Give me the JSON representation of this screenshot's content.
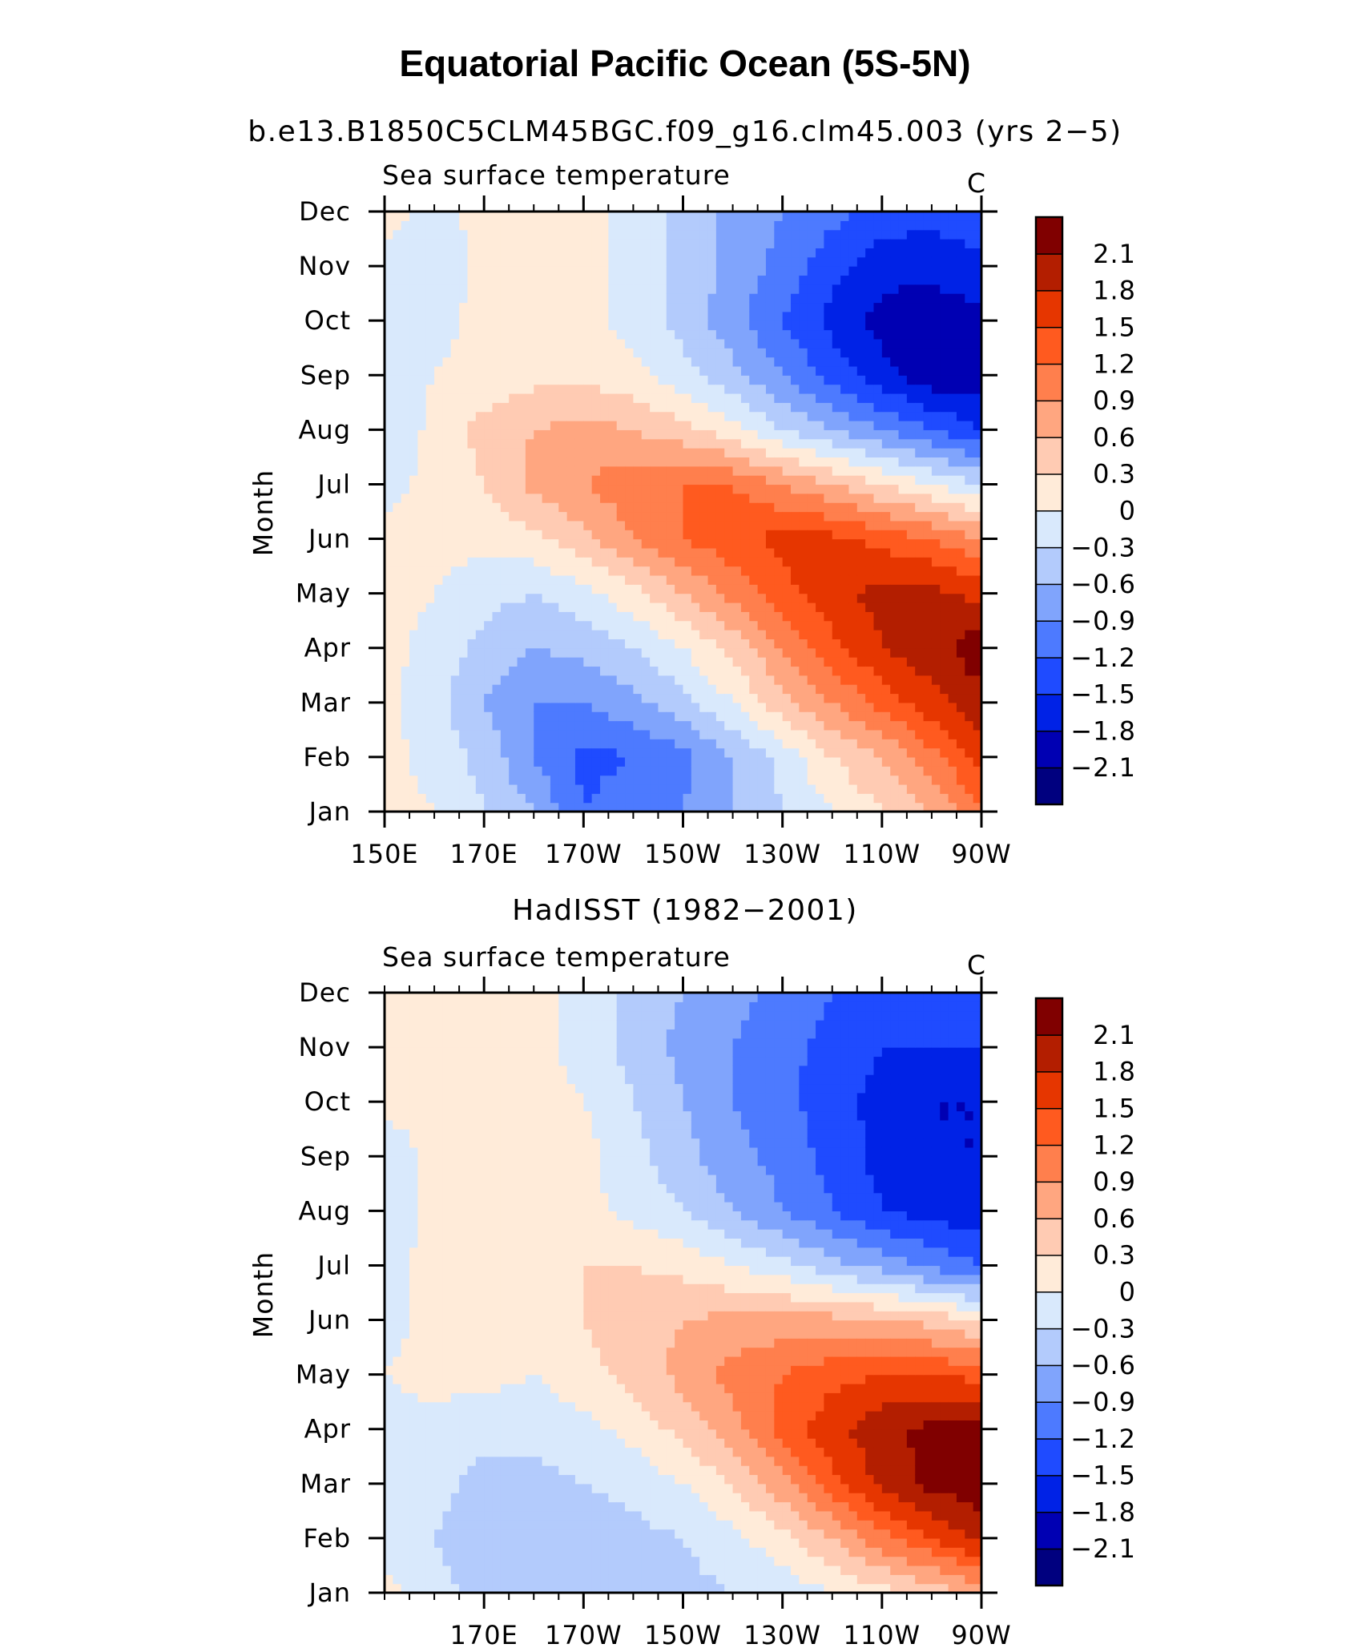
{
  "figure_title": "Equatorial Pacific Ocean (5S-5N)",
  "colors": [
    "#00007f",
    "#0000b3",
    "#0022e6",
    "#1f4bff",
    "#4d7aff",
    "#80a4fc",
    "#b3cbfc",
    "#d9e9fc",
    "#ffebd9",
    "#ffcbb3",
    "#ffa680",
    "#ff7f4d",
    "#ff5a1f",
    "#e63600",
    "#b31e00",
    "#800000"
  ],
  "colorbar_labels": [
    "2.1",
    "1.8",
    "1.5",
    "1.2",
    "0.9",
    "0.6",
    "0.3",
    "0",
    "−0.3",
    "−0.6",
    "−0.9",
    "−1.2",
    "−1.5",
    "−1.8",
    "−2.1"
  ],
  "chart_data": [
    {
      "type": "heatmap",
      "title": "b.e13.B1850C5CLM45BGC.f09_g16.clm45.003 (yrs 2−5)",
      "left_label": "Sea surface temperature",
      "units": "C",
      "xlabel": "",
      "ylabel": "Month",
      "x": [
        150,
        160,
        170,
        180,
        190,
        200,
        210,
        220,
        230,
        240,
        250,
        260,
        270
      ],
      "x_ticks": [
        {
          "v": 150,
          "label": "150E"
        },
        {
          "v": 170,
          "label": "170E"
        },
        {
          "v": 190,
          "label": "170W"
        },
        {
          "v": 210,
          "label": "150W"
        },
        {
          "v": 230,
          "label": "130W"
        },
        {
          "v": 250,
          "label": "110W"
        },
        {
          "v": 270,
          "label": "90W"
        }
      ],
      "y": [
        "Jan",
        "Feb",
        "Mar",
        "Apr",
        "May",
        "Jun",
        "Jul",
        "Aug",
        "Sep",
        "Oct",
        "Nov",
        "Dec"
      ],
      "z": [
        [
          0.1,
          0.0,
          -0.3,
          -0.6,
          -1.2,
          -1.0,
          -0.9,
          -0.6,
          -0.3,
          0.0,
          0.3,
          0.6,
          1.2
        ],
        [
          0.1,
          -0.1,
          -0.4,
          -0.9,
          -1.3,
          -1.2,
          -1.0,
          -0.6,
          -0.2,
          0.3,
          0.6,
          1.1,
          1.6
        ],
        [
          0.1,
          -0.2,
          -0.6,
          -0.9,
          -0.9,
          -0.7,
          -0.4,
          0.0,
          0.5,
          0.9,
          1.3,
          1.7,
          2.0
        ],
        [
          0.1,
          -0.1,
          -0.4,
          -0.6,
          -0.5,
          -0.3,
          0.0,
          0.4,
          0.9,
          1.4,
          1.8,
          2.0,
          2.3
        ],
        [
          0.1,
          0.0,
          -0.2,
          -0.3,
          -0.1,
          0.2,
          0.6,
          1.0,
          1.4,
          1.7,
          1.9,
          1.9,
          1.7
        ],
        [
          0.1,
          0.1,
          0.1,
          0.2,
          0.5,
          0.9,
          1.2,
          1.4,
          1.6,
          1.6,
          1.4,
          1.2,
          0.9
        ],
        [
          -0.1,
          0.1,
          0.3,
          0.7,
          0.9,
          1.1,
          1.2,
          1.2,
          0.9,
          0.6,
          0.3,
          0.0,
          -0.3
        ],
        [
          -0.3,
          0.1,
          0.4,
          0.6,
          0.7,
          0.6,
          0.4,
          0.1,
          -0.3,
          -0.6,
          -0.9,
          -1.2,
          -1.5
        ],
        [
          -0.2,
          0.0,
          0.1,
          0.2,
          0.2,
          0.1,
          -0.2,
          -0.5,
          -0.9,
          -1.3,
          -1.7,
          -2.0,
          -2.0
        ],
        [
          -0.1,
          -0.1,
          0.1,
          0.1,
          0.1,
          -0.1,
          -0.4,
          -0.8,
          -1.2,
          -1.6,
          -1.9,
          -2.0,
          -1.9
        ],
        [
          -0.1,
          -0.2,
          0.1,
          0.1,
          0.1,
          -0.1,
          -0.4,
          -0.7,
          -1.0,
          -1.4,
          -1.7,
          -1.7,
          -1.6
        ],
        [
          0.1,
          -0.1,
          0.1,
          0.1,
          0.1,
          -0.1,
          -0.4,
          -0.7,
          -0.9,
          -1.1,
          -1.3,
          -1.4,
          -1.3
        ]
      ],
      "levels": [
        -2.1,
        -1.8,
        -1.5,
        -1.2,
        -0.9,
        -0.6,
        -0.3,
        0,
        0.3,
        0.6,
        0.9,
        1.2,
        1.5,
        1.8,
        2.1
      ]
    },
    {
      "type": "heatmap",
      "title": "HadISST (1982−2001)",
      "left_label": "Sea surface temperature",
      "units": "C",
      "xlabel": "",
      "ylabel": "Month",
      "x": [
        150,
        160,
        170,
        180,
        190,
        200,
        210,
        220,
        230,
        240,
        250,
        260,
        270
      ],
      "x_ticks": [
        {
          "v": 170,
          "label": "170E"
        },
        {
          "v": 190,
          "label": "170W"
        },
        {
          "v": 210,
          "label": "150W"
        },
        {
          "v": 230,
          "label": "130W"
        },
        {
          "v": 250,
          "label": "110W"
        },
        {
          "v": 270,
          "label": "90W"
        }
      ],
      "y": [
        "Jan",
        "Feb",
        "Mar",
        "Apr",
        "May",
        "Jun",
        "Jul",
        "Aug",
        "Sep",
        "Oct",
        "Nov",
        "Dec"
      ],
      "z": [
        [
          0.1,
          -0.2,
          -0.4,
          -0.5,
          -0.5,
          -0.5,
          -0.4,
          -0.3,
          -0.2,
          0.0,
          0.2,
          0.4,
          0.7
        ],
        [
          -0.1,
          -0.3,
          -0.5,
          -0.5,
          -0.5,
          -0.4,
          -0.3,
          -0.1,
          0.2,
          0.6,
          1.1,
          1.5,
          1.9
        ],
        [
          -0.1,
          -0.2,
          -0.4,
          -0.4,
          -0.3,
          -0.2,
          0.0,
          0.3,
          0.8,
          1.4,
          1.9,
          2.2,
          2.3
        ],
        [
          -0.1,
          -0.1,
          -0.2,
          -0.2,
          -0.1,
          0.1,
          0.4,
          0.8,
          1.3,
          1.7,
          2.0,
          2.2,
          2.2
        ],
        [
          0.0,
          0.1,
          0.1,
          0.0,
          0.2,
          0.4,
          0.7,
          1.0,
          1.2,
          1.4,
          1.5,
          1.5,
          1.4
        ],
        [
          -0.1,
          0.1,
          0.1,
          0.1,
          0.3,
          0.5,
          0.6,
          0.7,
          0.7,
          0.7,
          0.6,
          0.5,
          0.2
        ],
        [
          -0.1,
          0.1,
          0.1,
          0.1,
          0.3,
          0.3,
          0.2,
          0.0,
          -0.2,
          -0.5,
          -0.7,
          -1.0,
          -1.2
        ],
        [
          -0.2,
          0.1,
          0.1,
          0.1,
          0.1,
          -0.1,
          -0.3,
          -0.6,
          -0.9,
          -1.2,
          -1.5,
          -1.6,
          -1.7
        ],
        [
          -0.2,
          0.1,
          0.3,
          0.2,
          0.1,
          -0.2,
          -0.5,
          -0.8,
          -1.0,
          -1.3,
          -1.6,
          -1.8,
          -1.8
        ],
        [
          0.1,
          0.1,
          0.1,
          0.1,
          0.0,
          -0.3,
          -0.6,
          -0.9,
          -1.1,
          -1.4,
          -1.6,
          -1.8,
          -1.8
        ],
        [
          0.1,
          0.1,
          0.1,
          0.1,
          -0.1,
          -0.4,
          -0.7,
          -0.9,
          -1.1,
          -1.3,
          -1.5,
          -1.5,
          -1.5
        ],
        [
          0.1,
          0.1,
          0.1,
          0.1,
          -0.1,
          -0.4,
          -0.6,
          -0.8,
          -1.0,
          -1.2,
          -1.3,
          -1.4,
          -1.3
        ]
      ],
      "levels": [
        -2.1,
        -1.8,
        -1.5,
        -1.2,
        -0.9,
        -0.6,
        -0.3,
        0,
        0.3,
        0.6,
        0.9,
        1.2,
        1.5,
        1.8,
        2.1
      ]
    }
  ]
}
